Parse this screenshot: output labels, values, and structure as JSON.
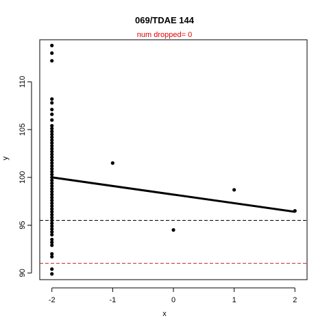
{
  "chart_data": {
    "type": "scatter",
    "title": "069/TDAE 144",
    "subtitle": "num dropped= 0",
    "xlabel": "x",
    "ylabel": "y",
    "xlim": [
      -2.2,
      2.2
    ],
    "ylim": [
      89.3,
      114.4
    ],
    "x_ticks": [
      -2,
      -1,
      0,
      1,
      2
    ],
    "y_ticks": [
      90,
      95,
      100,
      105,
      110
    ],
    "points": [
      {
        "x": -2,
        "y": 113.8
      },
      {
        "x": -2,
        "y": 113.0
      },
      {
        "x": -2,
        "y": 112.2
      },
      {
        "x": -2,
        "y": 108.2
      },
      {
        "x": -2,
        "y": 107.8
      },
      {
        "x": -2,
        "y": 107.1
      },
      {
        "x": -2,
        "y": 106.6
      },
      {
        "x": -2,
        "y": 106.0
      },
      {
        "x": -2,
        "y": 105.4
      },
      {
        "x": -2,
        "y": 105.1
      },
      {
        "x": -2,
        "y": 104.8
      },
      {
        "x": -2,
        "y": 104.5
      },
      {
        "x": -2,
        "y": 104.2
      },
      {
        "x": -2,
        "y": 103.9
      },
      {
        "x": -2,
        "y": 103.6
      },
      {
        "x": -2,
        "y": 103.3
      },
      {
        "x": -2,
        "y": 103.0
      },
      {
        "x": -2,
        "y": 102.7
      },
      {
        "x": -2,
        "y": 102.4
      },
      {
        "x": -2,
        "y": 102.1
      },
      {
        "x": -2,
        "y": 101.8
      },
      {
        "x": -2,
        "y": 101.5
      },
      {
        "x": -2,
        "y": 101.2
      },
      {
        "x": -2,
        "y": 100.9
      },
      {
        "x": -2,
        "y": 100.6
      },
      {
        "x": -2,
        "y": 100.3
      },
      {
        "x": -2,
        "y": 100.0
      },
      {
        "x": -2,
        "y": 99.7
      },
      {
        "x": -2,
        "y": 99.4
      },
      {
        "x": -2,
        "y": 99.1
      },
      {
        "x": -2,
        "y": 98.8
      },
      {
        "x": -2,
        "y": 98.5
      },
      {
        "x": -2,
        "y": 98.2
      },
      {
        "x": -2,
        "y": 97.9
      },
      {
        "x": -2,
        "y": 97.6
      },
      {
        "x": -2,
        "y": 97.3
      },
      {
        "x": -2,
        "y": 97.0
      },
      {
        "x": -2,
        "y": 96.7
      },
      {
        "x": -2,
        "y": 96.4
      },
      {
        "x": -2,
        "y": 96.1
      },
      {
        "x": -2,
        "y": 95.8
      },
      {
        "x": -2,
        "y": 95.5
      },
      {
        "x": -2,
        "y": 95.2
      },
      {
        "x": -2,
        "y": 94.9
      },
      {
        "x": -2,
        "y": 94.6
      },
      {
        "x": -2,
        "y": 94.3
      },
      {
        "x": -2,
        "y": 94.0
      },
      {
        "x": -2,
        "y": 93.5
      },
      {
        "x": -2,
        "y": 93.2
      },
      {
        "x": -2,
        "y": 92.9
      },
      {
        "x": -2,
        "y": 92.0
      },
      {
        "x": -2,
        "y": 91.7
      },
      {
        "x": -2,
        "y": 90.4
      },
      {
        "x": -2,
        "y": 89.9
      },
      {
        "x": -1,
        "y": 101.5
      },
      {
        "x": 0,
        "y": 94.5
      },
      {
        "x": 1,
        "y": 98.7
      },
      {
        "x": 2,
        "y": 96.5
      }
    ],
    "fit_line": {
      "x": [
        -2,
        2
      ],
      "y": [
        100.0,
        96.4
      ]
    },
    "hlines": [
      {
        "y": 95.5,
        "color": "#000000",
        "style": "dashed"
      },
      {
        "y": 91.0,
        "color": "#b22222",
        "style": "dashed"
      }
    ],
    "colors": {
      "points": "#000000",
      "fit": "#000000",
      "subtitle": "#e00000"
    }
  }
}
